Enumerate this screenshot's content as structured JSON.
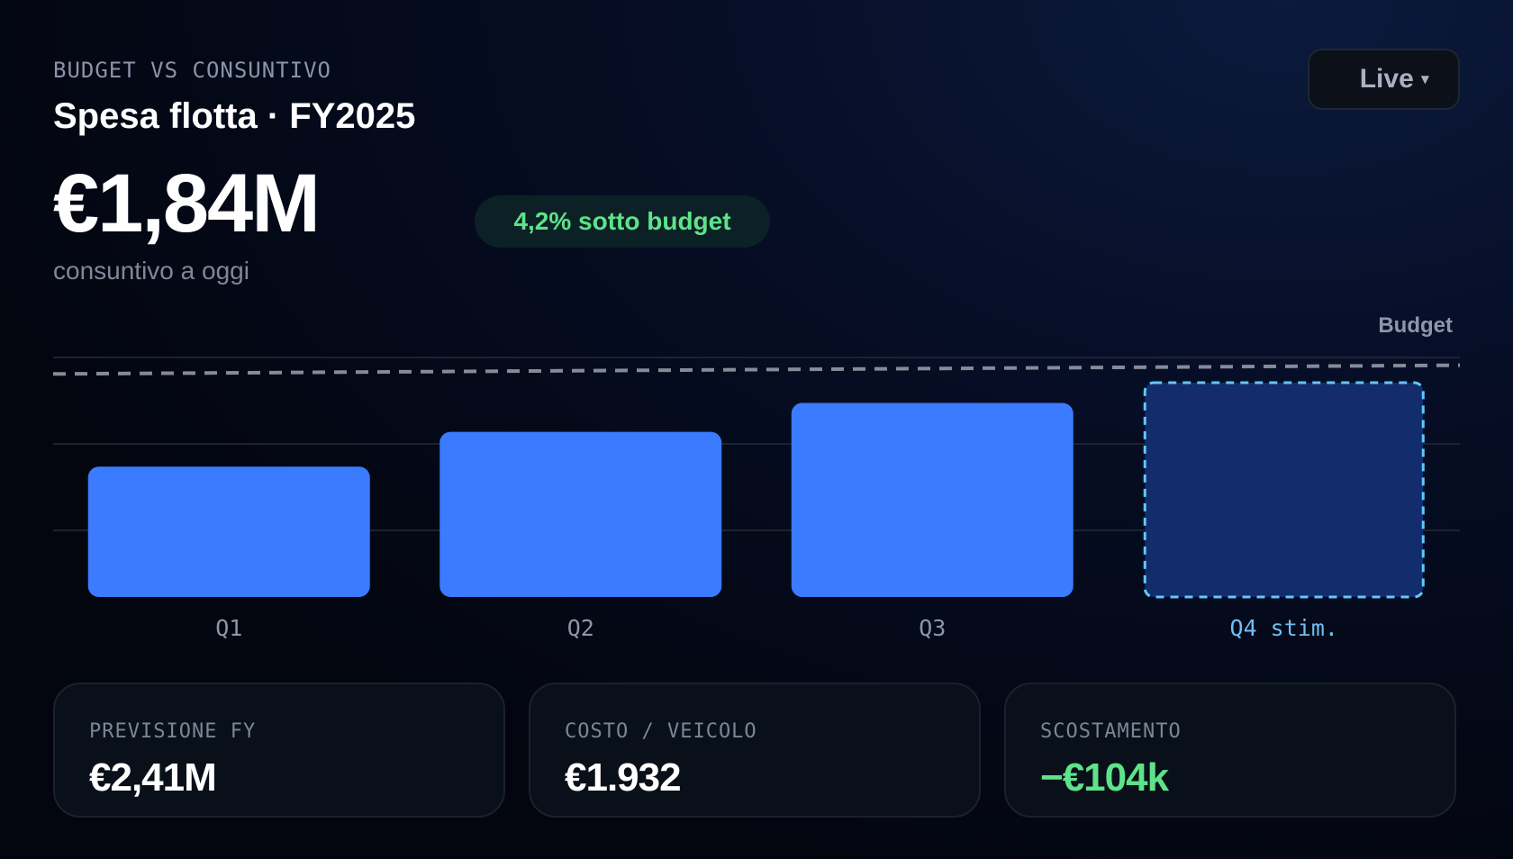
{
  "header": {
    "eyebrow": "BUDGET VS CONSUNTIVO",
    "title": "Spesa flotta · FY2025",
    "big_value": "€1,84M",
    "subtitle": "consuntivo a oggi",
    "badge": "4,2% sotto budget"
  },
  "live_select": {
    "label": "Live",
    "caret_icon": "caret-down-icon"
  },
  "chart_data": {
    "type": "bar",
    "categories": [
      "Q1",
      "Q2",
      "Q3",
      "Q4 stim."
    ],
    "values": [
      0.45,
      0.57,
      0.67,
      0.74
    ],
    "estimated": [
      false,
      false,
      false,
      true
    ],
    "reference_line": {
      "label": "Budget",
      "values": [
        0.77,
        0.8
      ],
      "style": "dashed"
    },
    "ylim": [
      0,
      0.83
    ],
    "grid": true,
    "colors": {
      "actual": "#3b7bff",
      "estimate_fill": "#132c6b",
      "estimate_stroke": "#5ec8ff",
      "budget_line": "#858c98",
      "estimate_label": "#6ec0f0",
      "tick_label": "#8d96aa"
    }
  },
  "cards": [
    {
      "label": "PREVISIONE FY",
      "value": "€2,41M",
      "positive": false
    },
    {
      "label": "COSTO / VEICOLO",
      "value": "€1.932",
      "positive": false
    },
    {
      "label": "SCOSTAMENTO",
      "value": "−€104k",
      "positive": true
    }
  ]
}
